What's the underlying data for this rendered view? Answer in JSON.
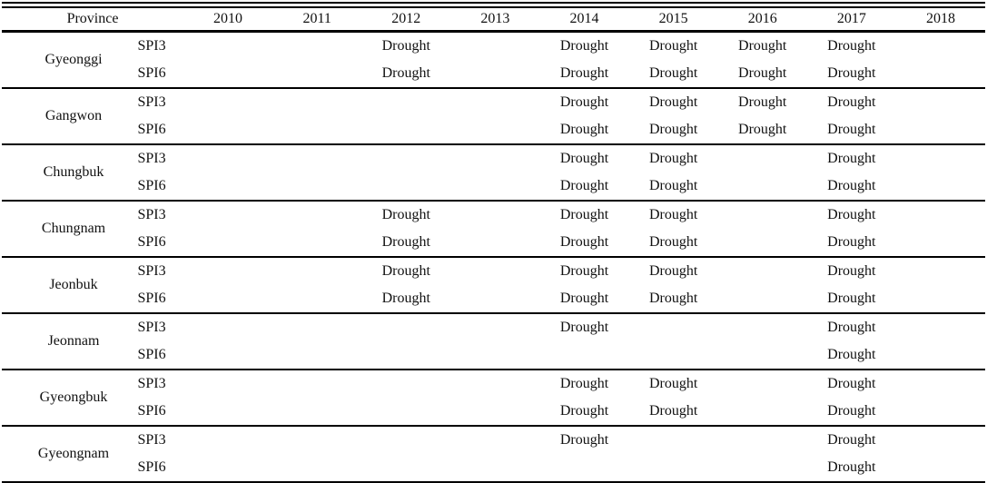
{
  "table": {
    "header": {
      "province_label": "Province",
      "years": [
        "2010",
        "2011",
        "2012",
        "2013",
        "2014",
        "2015",
        "2016",
        "2017",
        "2018"
      ]
    },
    "drought_label": "Drought",
    "spi_labels": [
      "SPI3",
      "SPI6"
    ],
    "groups": [
      {
        "province": "Gyeonggi",
        "rows": [
          {
            "label": "SPI3",
            "cells": [
              "",
              "",
              "Drought",
              "",
              "Drought",
              "Drought",
              "Drought",
              "Drought",
              ""
            ]
          },
          {
            "label": "SPI6",
            "cells": [
              "",
              "",
              "Drought",
              "",
              "Drought",
              "Drought",
              "Drought",
              "Drought",
              ""
            ]
          }
        ]
      },
      {
        "province": "Gangwon",
        "rows": [
          {
            "label": "SPI3",
            "cells": [
              "",
              "",
              "",
              "",
              "Drought",
              "Drought",
              "Drought",
              "Drought",
              ""
            ]
          },
          {
            "label": "SPI6",
            "cells": [
              "",
              "",
              "",
              "",
              "Drought",
              "Drought",
              "Drought",
              "Drought",
              ""
            ]
          }
        ]
      },
      {
        "province": "Chungbuk",
        "rows": [
          {
            "label": "SPI3",
            "cells": [
              "",
              "",
              "",
              "",
              "Drought",
              "Drought",
              "",
              "Drought",
              ""
            ]
          },
          {
            "label": "SPI6",
            "cells": [
              "",
              "",
              "",
              "",
              "Drought",
              "Drought",
              "",
              "Drought",
              ""
            ]
          }
        ]
      },
      {
        "province": "Chungnam",
        "rows": [
          {
            "label": "SPI3",
            "cells": [
              "",
              "",
              "Drought",
              "",
              "Drought",
              "Drought",
              "",
              "Drought",
              ""
            ]
          },
          {
            "label": "SPI6",
            "cells": [
              "",
              "",
              "Drought",
              "",
              "Drought",
              "Drought",
              "",
              "Drought",
              ""
            ]
          }
        ]
      },
      {
        "province": "Jeonbuk",
        "rows": [
          {
            "label": "SPI3",
            "cells": [
              "",
              "",
              "Drought",
              "",
              "Drought",
              "Drought",
              "",
              "Drought",
              ""
            ]
          },
          {
            "label": "SPI6",
            "cells": [
              "",
              "",
              "Drought",
              "",
              "Drought",
              "Drought",
              "",
              "Drought",
              ""
            ]
          }
        ]
      },
      {
        "province": "Jeonnam",
        "rows": [
          {
            "label": "SPI3",
            "cells": [
              "",
              "",
              "",
              "",
              "Drought",
              "",
              "",
              "Drought",
              ""
            ]
          },
          {
            "label": "SPI6",
            "cells": [
              "",
              "",
              "",
              "",
              "",
              "",
              "",
              "Drought",
              ""
            ]
          }
        ]
      },
      {
        "province": "Gyeongbuk",
        "rows": [
          {
            "label": "SPI3",
            "cells": [
              "",
              "",
              "",
              "",
              "Drought",
              "Drought",
              "",
              "Drought",
              ""
            ]
          },
          {
            "label": "SPI6",
            "cells": [
              "",
              "",
              "",
              "",
              "Drought",
              "Drought",
              "",
              "Drought",
              ""
            ]
          }
        ]
      },
      {
        "province": "Gyeongnam",
        "rows": [
          {
            "label": "SPI3",
            "cells": [
              "",
              "",
              "",
              "",
              "Drought",
              "",
              "",
              "Drought",
              ""
            ]
          },
          {
            "label": "SPI6",
            "cells": [
              "",
              "",
              "",
              "",
              "",
              "",
              "",
              "Drought",
              ""
            ]
          }
        ]
      }
    ]
  }
}
